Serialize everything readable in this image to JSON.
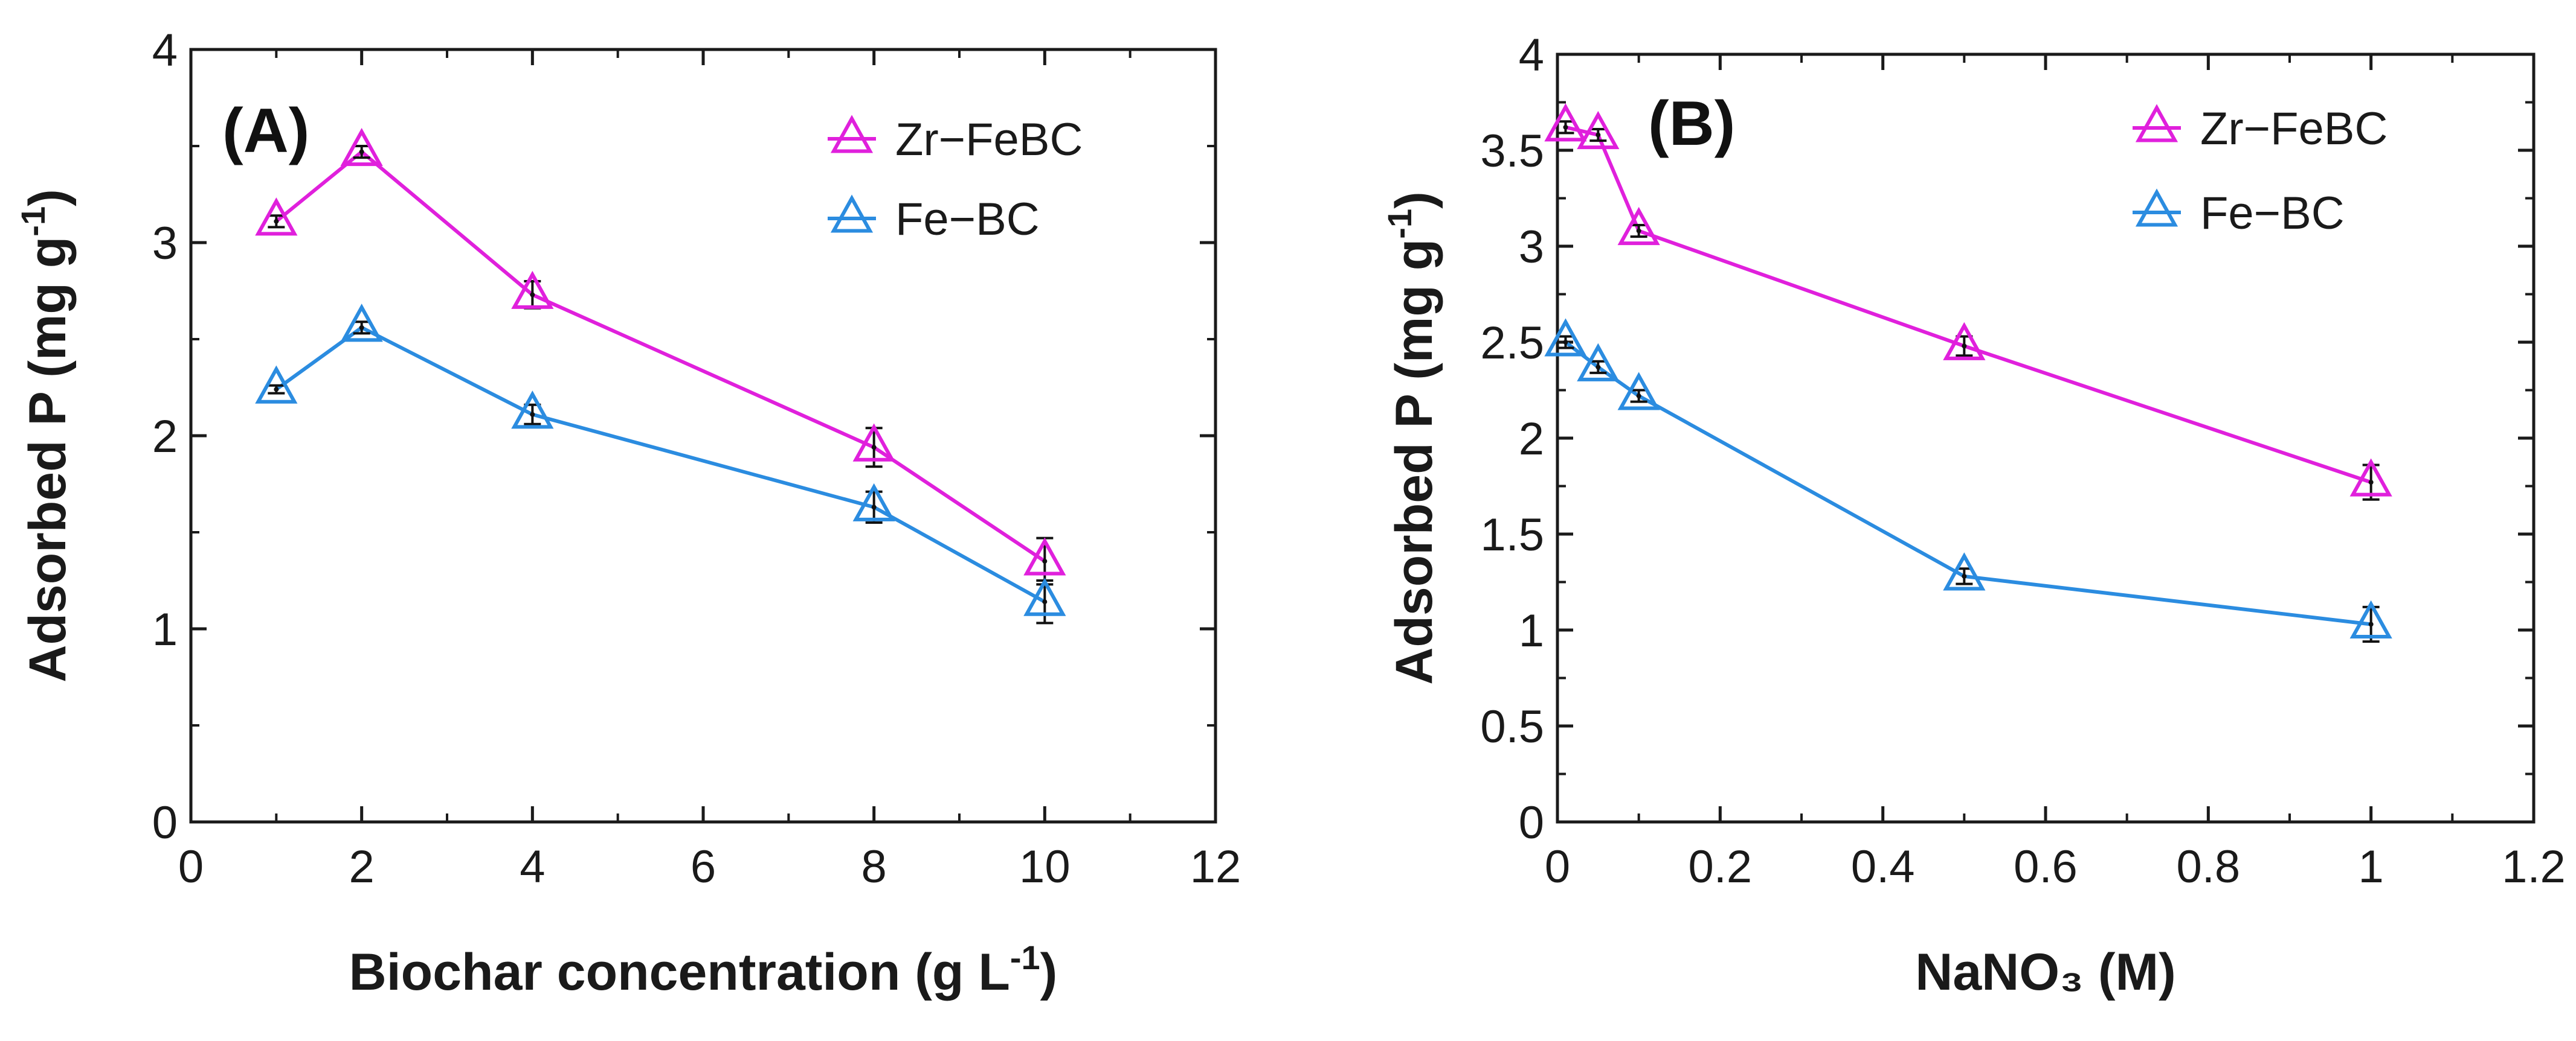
{
  "chart_data": [
    {
      "type": "line",
      "panel_label": "(A)",
      "xlabel": "Biochar concentration (g L",
      "xlabel_sup": "-1",
      "xlabel_end": ")",
      "ylabel": "Adsorbed P (mg g",
      "ylabel_sup": "-1",
      "ylabel_end": ")",
      "xlim": [
        0,
        12
      ],
      "ylim": [
        0,
        4
      ],
      "xticks": [
        "0",
        "2",
        "4",
        "6",
        "8",
        "10",
        "12"
      ],
      "yticks": [
        "0",
        "1",
        "2",
        "3",
        "4"
      ],
      "x": [
        1,
        2,
        4,
        8,
        10
      ],
      "legend_position": "top-right",
      "series": [
        {
          "name": "Zr−FeBC",
          "color": "#e020dc",
          "values": [
            3.11,
            3.47,
            2.73,
            1.94,
            1.35
          ],
          "errors": [
            0.03,
            0.03,
            0.07,
            0.1,
            0.12
          ]
        },
        {
          "name": "Fe−BC",
          "color": "#2b8ce0",
          "values": [
            2.24,
            2.56,
            2.11,
            1.63,
            1.14
          ],
          "errors": [
            0.02,
            0.03,
            0.05,
            0.08,
            0.11
          ]
        }
      ]
    },
    {
      "type": "line",
      "panel_label": "(B)",
      "xlabel": "NaNO₃ (M)",
      "xlabel_sup": "",
      "xlabel_end": "",
      "ylabel": "Adsorbed P (mg g",
      "ylabel_sup": "-1",
      "ylabel_end": ")",
      "xlim": [
        0,
        1.2
      ],
      "ylim": [
        0,
        4
      ],
      "xticks": [
        "0",
        "0.2",
        "0.4",
        "0.6",
        "0.8",
        "1",
        "1.2"
      ],
      "yticks": [
        "0",
        "0.5",
        "1",
        "1.5",
        "2",
        "2.5",
        "3",
        "3.5",
        "4"
      ],
      "x": [
        0.01,
        0.05,
        0.1,
        0.5,
        1.0
      ],
      "legend_position": "top-right",
      "series": [
        {
          "name": "Zr−FeBC",
          "color": "#e020dc",
          "values": [
            3.62,
            3.58,
            3.08,
            2.48,
            1.77
          ],
          "errors": [
            0.03,
            0.03,
            0.03,
            0.05,
            0.09
          ]
        },
        {
          "name": "Fe−BC",
          "color": "#2b8ce0",
          "values": [
            2.5,
            2.37,
            2.22,
            1.28,
            1.03
          ],
          "errors": [
            0.03,
            0.03,
            0.03,
            0.04,
            0.09
          ]
        }
      ]
    }
  ]
}
